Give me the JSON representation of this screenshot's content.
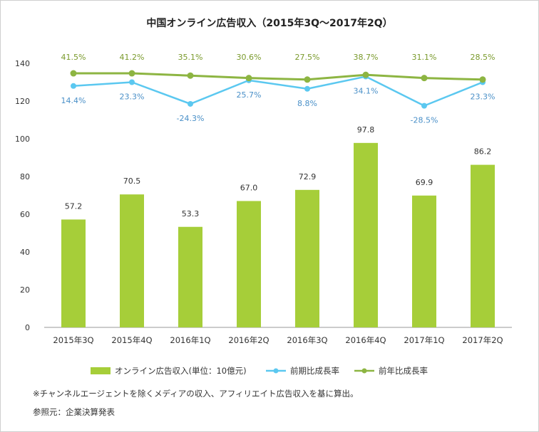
{
  "chart_data": {
    "type": "bar",
    "title": "中国オンライン広告収入（2015年3Q～2017年2Q）",
    "categories": [
      "2015年3Q",
      "2015年4Q",
      "2016年1Q",
      "2016年2Q",
      "2016年3Q",
      "2016年4Q",
      "2017年1Q",
      "2017年2Q"
    ],
    "ylim": [
      0,
      140
    ],
    "yticks": [
      0,
      20,
      40,
      60,
      80,
      100,
      120,
      140
    ],
    "grid": false,
    "legend_position": "bottom",
    "bars": {
      "name": "オンライン広告収入(単位：10億元)",
      "values": [
        57.2,
        70.5,
        53.3,
        67.0,
        72.9,
        97.8,
        69.9,
        86.2
      ],
      "labels": [
        "57.2",
        "70.5",
        "53.3",
        "67.0",
        "72.9",
        "97.8",
        "69.9",
        "86.2"
      ],
      "color": "#a6ce39"
    },
    "lines": [
      {
        "name": "前期比成長率",
        "labels": [
          "14.4%",
          "23.3%",
          "-24.3%",
          "25.7%",
          "8.8%",
          "34.1%",
          "-28.5%",
          "23.3%"
        ],
        "plot_y": [
          128,
          130,
          118.5,
          131,
          126.5,
          133,
          117.5,
          130
        ],
        "color": "#5bc8f0",
        "label_color": "#4a90c8"
      },
      {
        "name": "前年比成長率",
        "labels": [
          "41.5%",
          "41.2%",
          "35.1%",
          "30.6%",
          "27.5%",
          "38.7%",
          "31.1%",
          "28.5%"
        ],
        "plot_y": [
          134.7,
          134.7,
          133.5,
          132.2,
          131.4,
          133.9,
          132.2,
          131.4
        ],
        "color": "#8db542",
        "label_color": "#7a9a2c"
      }
    ]
  },
  "notes": {
    "line1": "※チャンネルエージェントを除くメディアの収入、アフィリエイト広告収入を基に算出。",
    "line2": "参照元：企業決算発表"
  }
}
